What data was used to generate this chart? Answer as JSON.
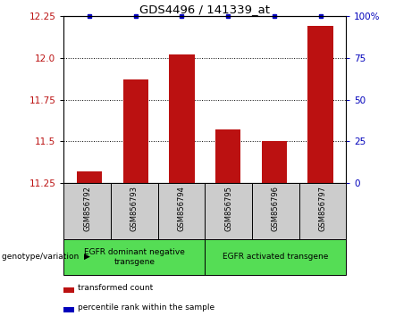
{
  "title": "GDS4496 / 141339_at",
  "samples": [
    "GSM856792",
    "GSM856793",
    "GSM856794",
    "GSM856795",
    "GSM856796",
    "GSM856797"
  ],
  "transformed_count": [
    11.32,
    11.87,
    12.02,
    11.57,
    11.5,
    12.19
  ],
  "percentile_rank": [
    100,
    100,
    100,
    100,
    100,
    100
  ],
  "ylim": [
    11.25,
    12.25
  ],
  "yticks": [
    11.25,
    11.5,
    11.75,
    12.0,
    12.25
  ],
  "right_yticks": [
    0,
    25,
    50,
    75,
    100
  ],
  "right_ytick_labels": [
    "0",
    "25",
    "50",
    "75",
    "100%"
  ],
  "bar_color": "#bb1111",
  "dot_color": "#0000bb",
  "group1_label": "EGFR dominant negative\ntransgene",
  "group2_label": "EGFR activated transgene",
  "group1_indices": [
    0,
    1,
    2
  ],
  "group2_indices": [
    3,
    4,
    5
  ],
  "group_bg_color": "#55dd55",
  "sample_bg_color": "#cccccc",
  "legend_bar_label": "transformed count",
  "legend_dot_label": "percentile rank within the sample",
  "bottom_label": "genotype/variation"
}
